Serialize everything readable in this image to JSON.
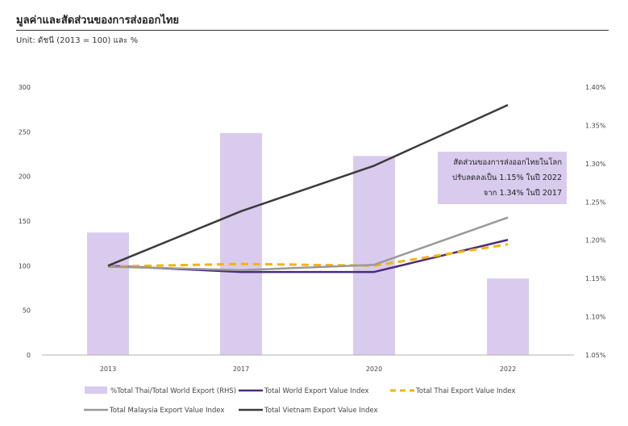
{
  "header": {
    "title": "มูลค่าและสัดส่วนของการส่งออกไทย",
    "unit": "Unit: ดัชนี (2013 = 100) และ %"
  },
  "annotation": {
    "lines": [
      "สัดส่วนของการส่งออกไทยในโลก",
      "ปรับลดลงเป็น 1.15% ในปี 2022",
      "จาก 1.34% ในปี 2017"
    ]
  },
  "colors": {
    "bar": "#d9cbee",
    "world": "#4b2a7e",
    "thai": "#f5b400",
    "malaysia": "#999999",
    "vietnam": "#3a3a3a",
    "axis": "#b0b0b0"
  },
  "chart_data": {
    "type": "bar+line",
    "categories": [
      "2013",
      "2017",
      "2020",
      "2022"
    ],
    "y_left": {
      "min": 0,
      "max": 300,
      "ticks": [
        "0",
        "50",
        "100",
        "150",
        "200",
        "250",
        "300"
      ]
    },
    "y_right": {
      "min": 1.05,
      "max": 1.4,
      "ticks": [
        "1.05%",
        "1.10%",
        "1.15%",
        "1.20%",
        "1.25%",
        "1.30%",
        "1.35%",
        "1.40%"
      ]
    },
    "bars": {
      "name": "%Total Thai/Total World Export (RHS)",
      "axis": "right",
      "values": [
        1.21,
        1.34,
        1.31,
        1.15
      ]
    },
    "series": [
      {
        "name": "Total World Export Value Index",
        "key": "world",
        "style": "solid",
        "values": [
          100,
          93,
          93,
          129
        ]
      },
      {
        "name": "Total Thai Export Value Index",
        "key": "thai",
        "style": "dashed",
        "values": [
          99,
          102,
          100,
          124
        ]
      },
      {
        "name": "Total Malaysia Export Value Index",
        "key": "malaysia",
        "style": "solid",
        "values": [
          99,
          95,
          101,
          154
        ]
      },
      {
        "name": "Total Vietnam Export Value Index",
        "key": "vietnam",
        "style": "solid",
        "values": [
          100,
          161,
          212,
          280
        ]
      }
    ],
    "grid": false,
    "legend": "bottom"
  }
}
